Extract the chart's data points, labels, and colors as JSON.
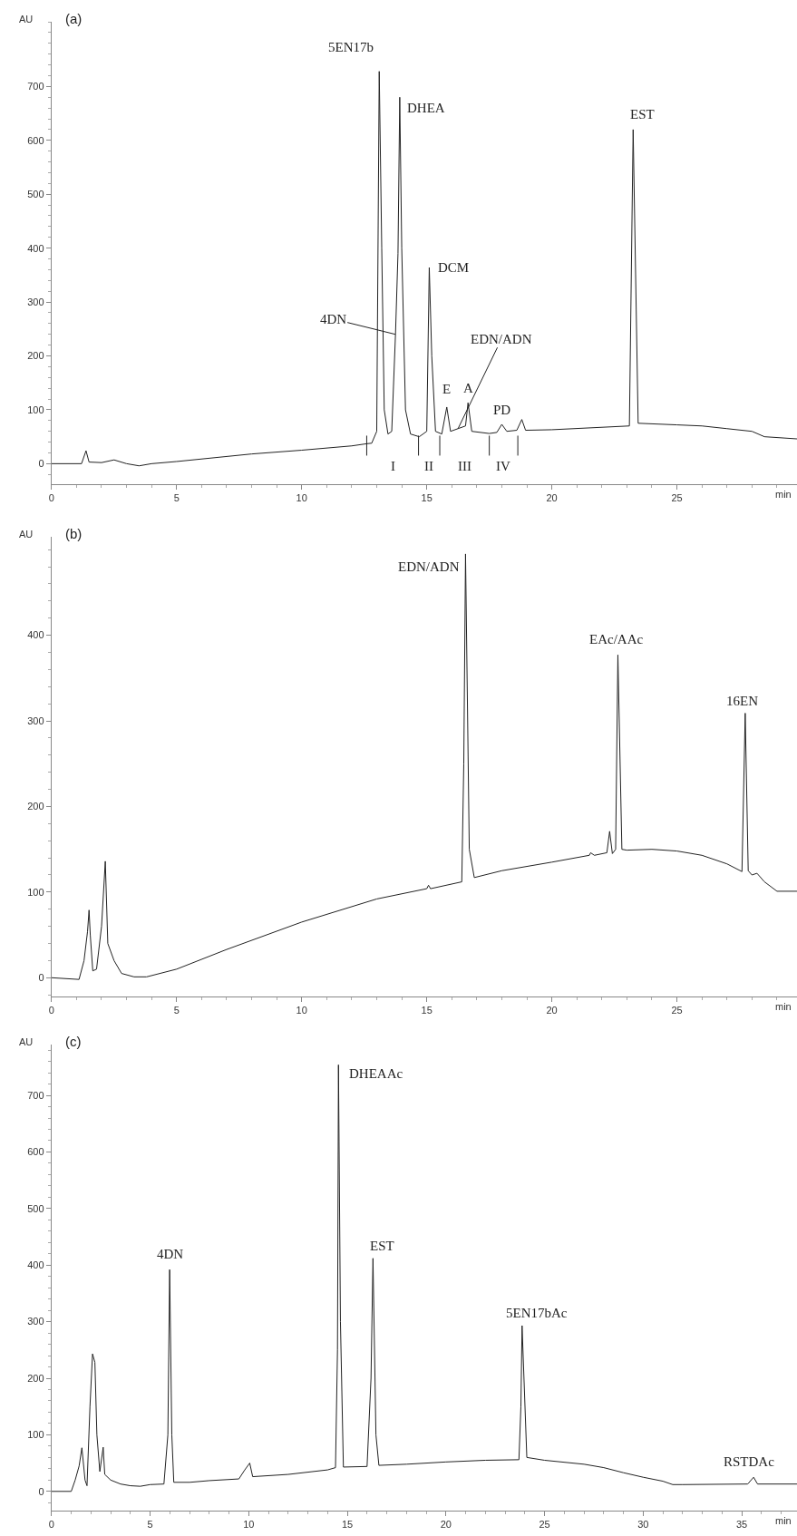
{
  "chart_data": [
    {
      "type": "line",
      "title": "(a)",
      "xlabel": "min",
      "ylabel": "AU",
      "xlim": [
        0,
        29.8
      ],
      "ylim": [
        -38,
        820
      ],
      "xticks": [
        0,
        5,
        10,
        15,
        20,
        25
      ],
      "yticks": [
        0,
        100,
        200,
        300,
        400,
        500,
        600,
        700
      ],
      "series": [
        {
          "color": "#222222",
          "x": [
            0,
            1.2,
            1.38,
            1.5,
            2,
            2.5,
            3,
            3.5,
            4,
            5,
            8,
            10,
            12,
            12.6,
            12.8,
            13.0,
            13.1,
            13.2,
            13.3,
            13.45,
            13.6,
            13.75,
            13.85,
            13.92,
            14.0,
            14.15,
            14.35,
            14.7,
            15.0,
            15.1,
            15.2,
            15.35,
            15.6,
            15.8,
            15.95,
            16.25,
            16.55,
            16.65,
            16.8,
            17.5,
            17.8,
            18.0,
            18.2,
            18.6,
            18.8,
            18.95,
            20,
            23.1,
            23.25,
            23.45,
            25,
            26,
            27,
            28,
            28.5,
            29.8
          ],
          "values": [
            0,
            0,
            24,
            3,
            2,
            7,
            0,
            -4,
            0,
            4,
            18,
            25,
            33,
            37,
            38,
            60,
            728,
            400,
            100,
            55,
            60,
            240,
            390,
            680,
            400,
            100,
            55,
            50,
            60,
            364,
            200,
            60,
            55,
            105,
            60,
            65,
            70,
            113,
            60,
            56,
            58,
            73,
            60,
            62,
            82,
            62,
            63,
            70,
            620,
            75,
            72,
            70,
            65,
            60,
            50,
            46
          ]
        },
        {
          "color": "#222222",
          "x": [
            12.6,
            12.6,
            null,
            14.67,
            14.67,
            null,
            15.52,
            15.52,
            null,
            17.5,
            17.5,
            null,
            18.64,
            18.64
          ],
          "values": [
            15,
            52,
            null,
            15,
            52,
            null,
            15,
            52,
            null,
            15,
            52,
            null,
            15,
            52
          ]
        }
      ],
      "annotations": [
        {
          "text": "5EN17b",
          "x": 13.1,
          "y": 728
        },
        {
          "text": "DHEA",
          "x": 13.92,
          "y": 680
        },
        {
          "text": "DCM",
          "x": 15.1,
          "y": 364
        },
        {
          "text": "4DN",
          "x": 13.75,
          "y": 240
        },
        {
          "text": "EDN/ADN",
          "x": 16.25,
          "y": 65
        },
        {
          "text": "E",
          "x": 15.8,
          "y": 105
        },
        {
          "text": "A",
          "x": 16.65,
          "y": 113
        },
        {
          "text": "PD",
          "x": 18.0,
          "y": 73
        },
        {
          "text": "EST",
          "x": 23.25,
          "y": 620
        },
        "I",
        "II",
        "III",
        "IV"
      ]
    },
    {
      "type": "line",
      "title": "(b)",
      "xlabel": "min",
      "ylabel": "AU",
      "xlim": [
        0,
        29.8
      ],
      "ylim": [
        -22,
        515
      ],
      "xticks": [
        0,
        5,
        10,
        15,
        20,
        25
      ],
      "yticks": [
        0,
        100,
        200,
        300,
        400
      ],
      "series": [
        {
          "color": "#222222",
          "x": [
            0,
            1.1,
            1.3,
            1.44,
            1.5,
            1.55,
            1.65,
            1.8,
            2.0,
            2.15,
            2.25,
            2.5,
            2.8,
            3.3,
            3.8,
            5,
            7,
            10,
            13,
            15,
            15.07,
            15.15,
            16.4,
            16.48,
            16.55,
            16.7,
            16.9,
            18,
            20,
            21.5,
            21.55,
            21.7,
            22.2,
            22.31,
            22.42,
            22.55,
            22.64,
            22.8,
            23,
            24,
            25,
            26,
            27,
            27.6,
            27.73,
            27.85,
            28.0,
            28.2,
            28.5,
            29,
            29.8
          ],
          "values": [
            0,
            -2,
            20,
            54,
            79,
            50,
            8,
            10,
            60,
            136,
            40,
            20,
            5,
            1,
            1,
            10,
            33,
            65,
            92,
            104,
            108,
            104,
            112,
            250,
            495,
            150,
            117,
            125,
            135,
            143,
            146,
            143,
            146,
            171,
            145,
            150,
            377,
            150,
            149,
            150,
            148,
            143,
            133,
            124,
            309,
            125,
            120,
            122,
            112,
            101,
            101
          ]
        }
      ],
      "annotations": [
        {
          "text": "EDN/ADN",
          "x": 16.55,
          "y": 495
        },
        {
          "text": "EAc/AAc",
          "x": 22.64,
          "y": 377
        },
        {
          "text": "16EN",
          "x": 27.73,
          "y": 309
        }
      ]
    },
    {
      "type": "line",
      "title": "(c)",
      "xlabel": "min",
      "ylabel": "AU",
      "xlim": [
        0,
        37.8
      ],
      "ylim": [
        -34,
        790
      ],
      "xticks": [
        0,
        5,
        10,
        15,
        20,
        25,
        30,
        35
      ],
      "yticks": [
        0,
        100,
        200,
        300,
        400,
        500,
        600,
        700
      ],
      "series": [
        {
          "color": "#222222",
          "x": [
            0,
            1.0,
            1.2,
            1.4,
            1.54,
            1.7,
            1.8,
            1.95,
            2.08,
            2.2,
            2.3,
            2.45,
            2.62,
            2.7,
            3,
            3.5,
            4,
            4.5,
            5,
            5.7,
            5.9,
            5.99,
            6.1,
            6.2,
            7,
            8,
            9.5,
            9.8,
            10.05,
            10.2,
            12,
            14,
            14.4,
            14.5,
            14.55,
            14.65,
            14.8,
            16.0,
            16.2,
            16.3,
            16.45,
            16.6,
            18,
            20,
            22,
            23.7,
            23.8,
            23.86,
            24.1,
            25,
            27,
            28,
            29,
            30,
            31,
            31.5,
            32,
            35.3,
            35.6,
            35.8,
            37.8
          ],
          "values": [
            0,
            0,
            20,
            45,
            77,
            20,
            10,
            150,
            243,
            228,
            100,
            35,
            78,
            30,
            20,
            13,
            10,
            9,
            12,
            13,
            100,
            392,
            100,
            16,
            16,
            19,
            22,
            38,
            50,
            26,
            30,
            38,
            42,
            250,
            754,
            300,
            43,
            44,
            200,
            412,
            100,
            46,
            48,
            52,
            55,
            56,
            150,
            293,
            60,
            55,
            48,
            42,
            33,
            25,
            18,
            12,
            12,
            13,
            25,
            13,
            13
          ]
        }
      ],
      "annotations": [
        {
          "text": "4DN",
          "x": 5.99,
          "y": 392
        },
        {
          "text": "DHEAAc",
          "x": 14.55,
          "y": 754
        },
        {
          "text": "EST",
          "x": 16.3,
          "y": 412
        },
        {
          "text": "5EN17bAc",
          "x": 23.86,
          "y": 293
        },
        {
          "text": "RSTDAc",
          "x": 35.6,
          "y": 25
        }
      ]
    }
  ]
}
